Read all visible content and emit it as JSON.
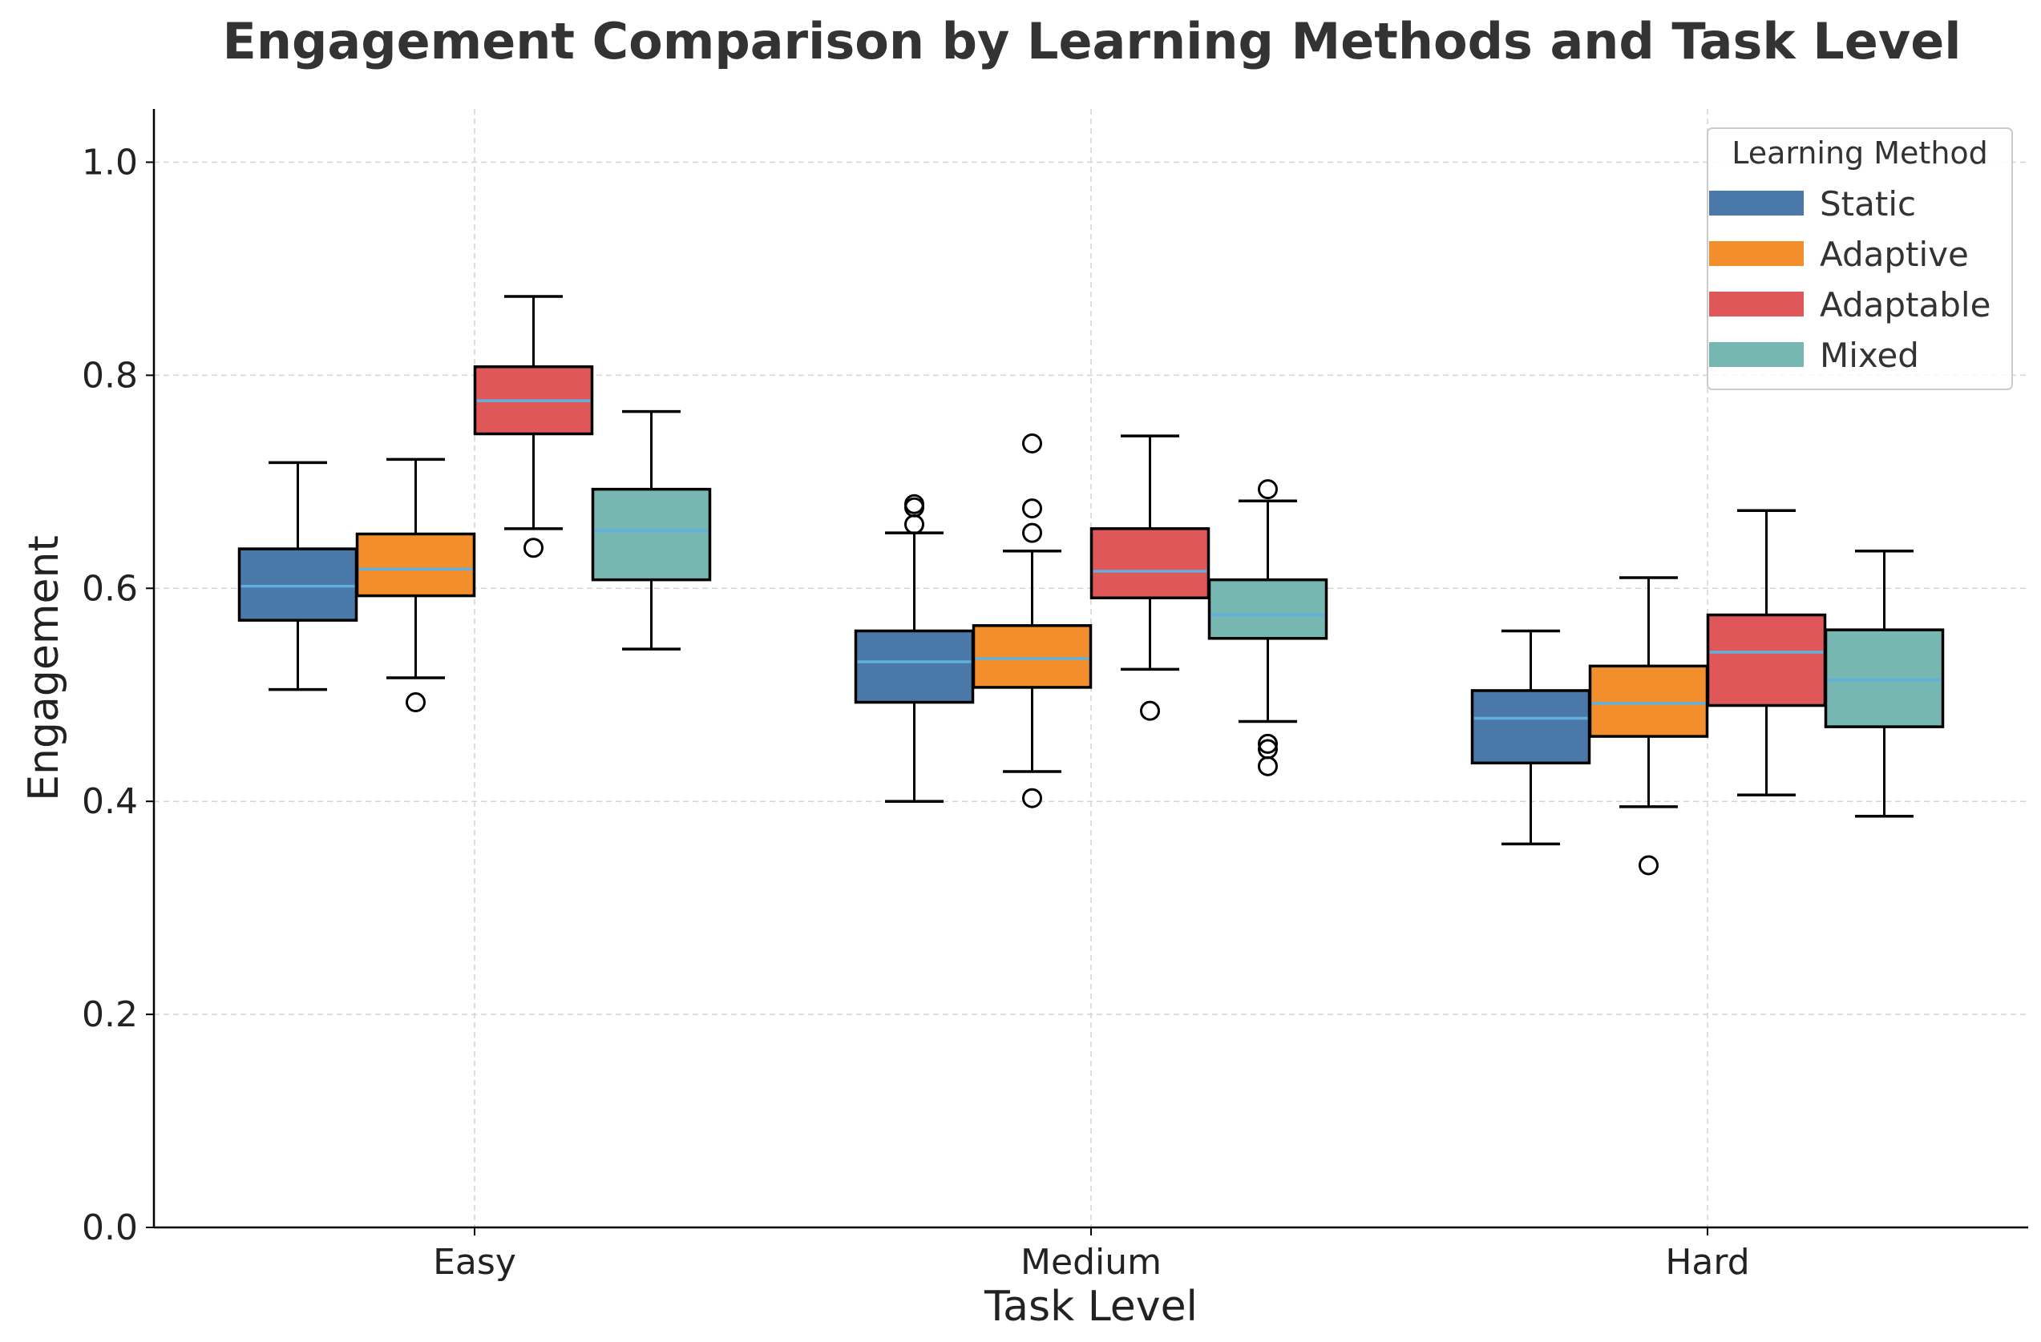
{
  "chart_data": {
    "type": "box",
    "title": "Engagement Comparison by Learning Methods and Task Level",
    "xlabel": "Task Level",
    "ylabel": "Engagement",
    "ylim": [
      0.0,
      1.05
    ],
    "yticks": [
      0.0,
      0.2,
      0.4,
      0.6,
      0.8,
      1.0
    ],
    "ytick_labels": [
      "0.0",
      "0.2",
      "0.4",
      "0.6",
      "0.8",
      "1.0"
    ],
    "grid": true,
    "categories": [
      "Easy",
      "Medium",
      "Hard"
    ],
    "legend": {
      "title": "Learning Method",
      "placement": "top-right"
    },
    "series": [
      {
        "name": "Static",
        "color": "#4a78a8",
        "median_color": "#5fb0de",
        "boxes": [
          {
            "whisker_low": 0.505,
            "q1": 0.57,
            "median": 0.602,
            "q3": 0.637,
            "whisker_high": 0.718,
            "outliers": []
          },
          {
            "whisker_low": 0.4,
            "q1": 0.493,
            "median": 0.531,
            "q3": 0.56,
            "whisker_high": 0.652,
            "outliers": [
              0.66,
              0.676,
              0.679
            ]
          },
          {
            "whisker_low": 0.36,
            "q1": 0.436,
            "median": 0.478,
            "q3": 0.504,
            "whisker_high": 0.56,
            "outliers": []
          }
        ]
      },
      {
        "name": "Adaptive",
        "color": "#f28e2c",
        "median_color": "#5fb0de",
        "boxes": [
          {
            "whisker_low": 0.516,
            "q1": 0.593,
            "median": 0.618,
            "q3": 0.651,
            "whisker_high": 0.721,
            "outliers": [
              0.493
            ]
          },
          {
            "whisker_low": 0.428,
            "q1": 0.507,
            "median": 0.534,
            "q3": 0.565,
            "whisker_high": 0.635,
            "outliers": [
              0.403,
              0.652,
              0.675,
              0.736
            ]
          },
          {
            "whisker_low": 0.395,
            "q1": 0.461,
            "median": 0.492,
            "q3": 0.527,
            "whisker_high": 0.61,
            "outliers": [
              0.34
            ]
          }
        ]
      },
      {
        "name": "Adaptable",
        "color": "#e05759",
        "median_color": "#5fb0de",
        "boxes": [
          {
            "whisker_low": 0.656,
            "q1": 0.745,
            "median": 0.776,
            "q3": 0.808,
            "whisker_high": 0.874,
            "outliers": [
              0.638
            ]
          },
          {
            "whisker_low": 0.524,
            "q1": 0.591,
            "median": 0.616,
            "q3": 0.656,
            "whisker_high": 0.743,
            "outliers": [
              0.485
            ]
          },
          {
            "whisker_low": 0.406,
            "q1": 0.49,
            "median": 0.54,
            "q3": 0.575,
            "whisker_high": 0.673,
            "outliers": []
          }
        ]
      },
      {
        "name": "Mixed",
        "color": "#76b7b2",
        "median_color": "#5fb0de",
        "boxes": [
          {
            "whisker_low": 0.543,
            "q1": 0.608,
            "median": 0.654,
            "q3": 0.693,
            "whisker_high": 0.766,
            "outliers": []
          },
          {
            "whisker_low": 0.475,
            "q1": 0.553,
            "median": 0.575,
            "q3": 0.608,
            "whisker_high": 0.682,
            "outliers": [
              0.433,
              0.449,
              0.454,
              0.693
            ]
          },
          {
            "whisker_low": 0.386,
            "q1": 0.47,
            "median": 0.514,
            "q3": 0.561,
            "whisker_high": 0.635,
            "outliers": []
          }
        ]
      }
    ]
  }
}
